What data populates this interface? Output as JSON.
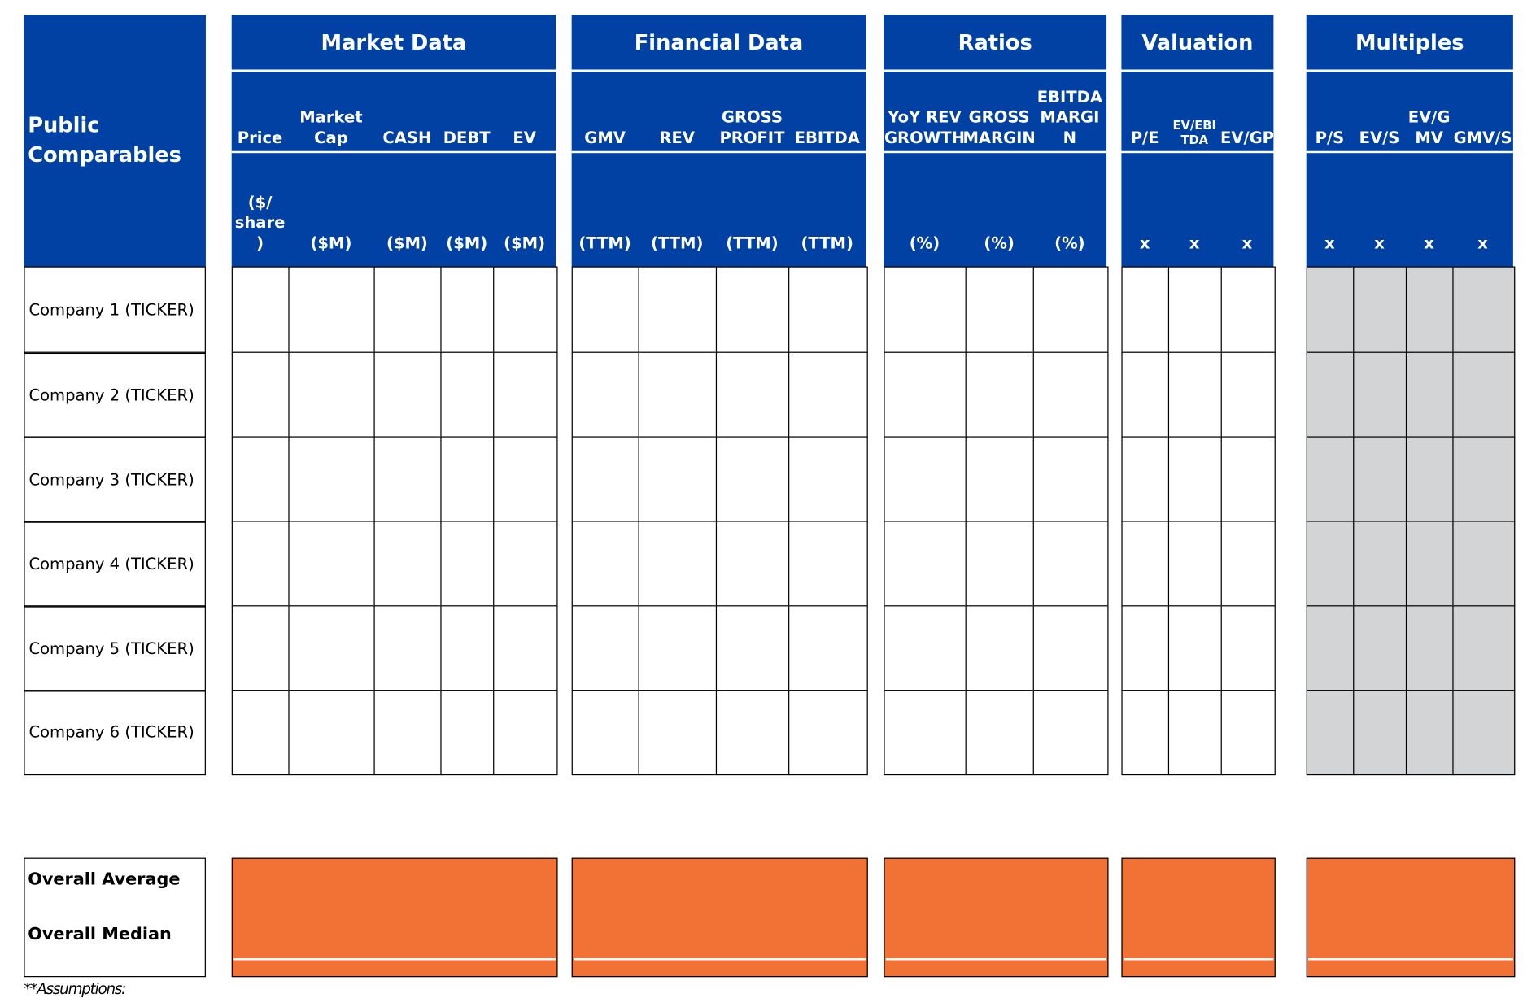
{
  "header": {
    "title": "Public Comparables"
  },
  "groups": [
    {
      "title": "Market Data",
      "columns": [
        {
          "name": "Price",
          "unit": "($/ share )"
        },
        {
          "name": "Market Cap",
          "unit": "($M)"
        },
        {
          "name": "CASH",
          "unit": "($M)"
        },
        {
          "name": "DEBT",
          "unit": "($M)"
        },
        {
          "name": "EV",
          "unit": "($M)"
        }
      ]
    },
    {
      "title": "Financial Data",
      "columns": [
        {
          "name": "GMV",
          "unit": "(TTM)"
        },
        {
          "name": "REV",
          "unit": "(TTM)"
        },
        {
          "name": "GROSS PROFIT",
          "unit": "(TTM)"
        },
        {
          "name": "EBITDA",
          "unit": "(TTM)"
        }
      ]
    },
    {
      "title": "Ratios",
      "columns": [
        {
          "name": "YoY REV GROWTH",
          "unit": "(%)"
        },
        {
          "name": "GROSS MARGIN",
          "unit": "(%)"
        },
        {
          "name": "EBITDA MARGI N",
          "unit": "(%)"
        }
      ]
    },
    {
      "title": "Valuation",
      "columns": [
        {
          "name": "P/E",
          "unit": "x"
        },
        {
          "name": "EV/EBI TDA",
          "unit": "x"
        },
        {
          "name": "EV/GP",
          "unit": "x"
        }
      ]
    },
    {
      "title": "Multiples",
      "columns": [
        {
          "name": "P/S",
          "unit": "x"
        },
        {
          "name": "EV/S",
          "unit": "x"
        },
        {
          "name": "EV/G MV",
          "unit": "x"
        },
        {
          "name": "GMV/S",
          "unit": "x"
        }
      ]
    }
  ],
  "rows": [
    "Company 1 (TICKER)",
    "Company 2 (TICKER)",
    "Company 3 (TICKER)",
    "Company 4 (TICKER)",
    "Company 5 (TICKER)",
    "Company 6 (TICKER)"
  ],
  "summary": [
    "Overall Average",
    "Overall Median"
  ],
  "footnote": "**Assumptions:"
}
